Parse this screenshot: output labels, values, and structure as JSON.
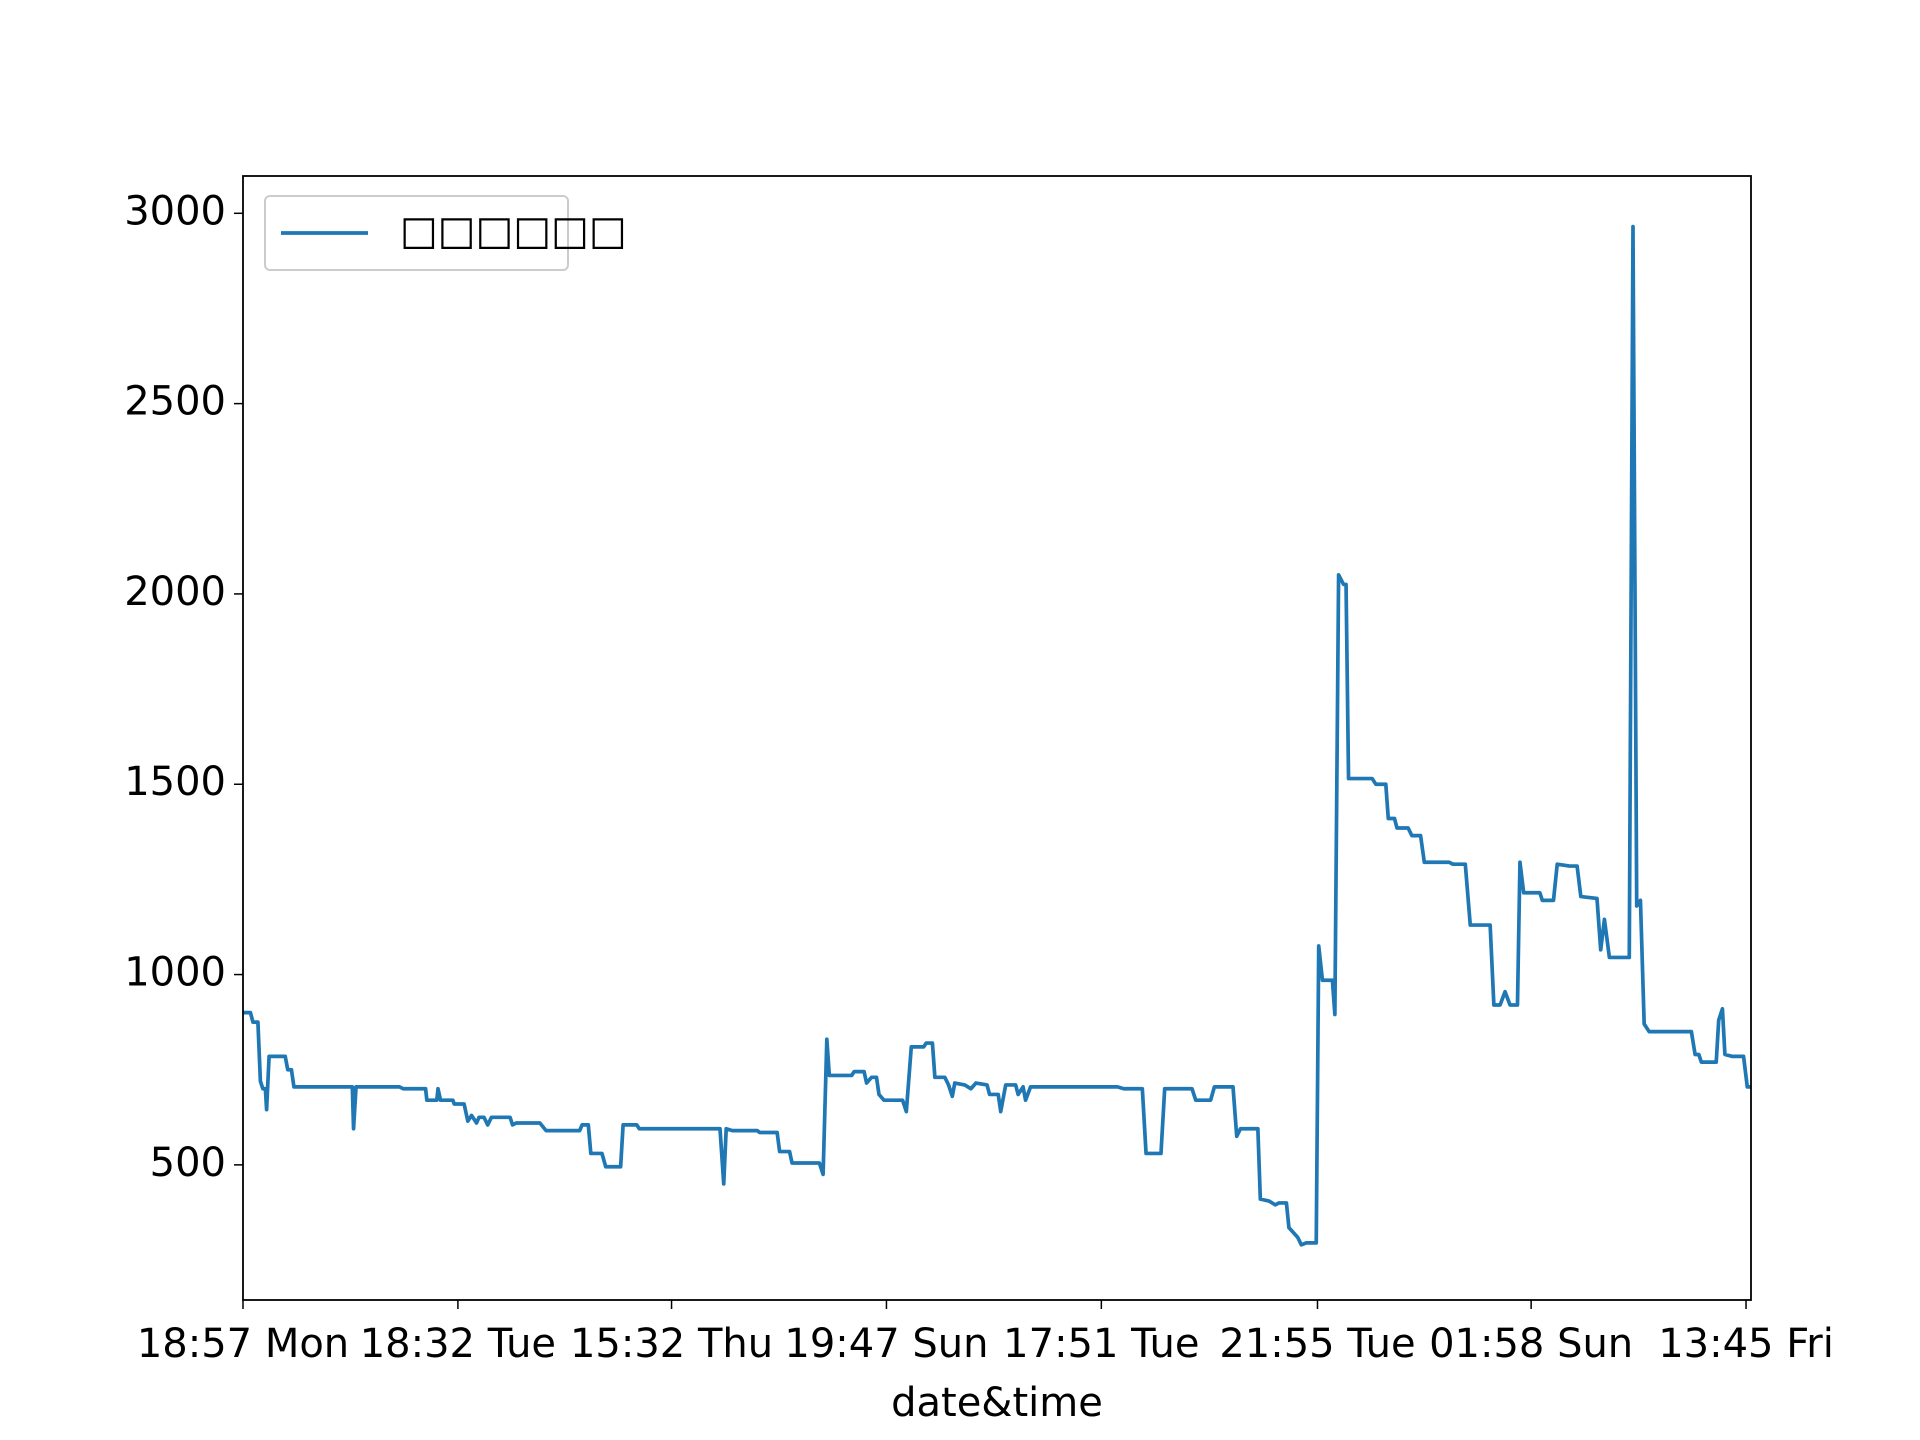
{
  "chart_data": {
    "type": "line",
    "xlabel": "date&time",
    "x": [
      0,
      6,
      8,
      12,
      14,
      16,
      18,
      19,
      21,
      34,
      36,
      39,
      41,
      88,
      89,
      91,
      126,
      129,
      147,
      148,
      156,
      157,
      159,
      169,
      170,
      178,
      181,
      184,
      188,
      190,
      194,
      197,
      200,
      215,
      217,
      220,
      239,
      244,
      271,
      273,
      278,
      280,
      289,
      292,
      304,
      306,
      317,
      319,
      384,
      387,
      389,
      394,
      414,
      416,
      430,
      432,
      440,
      442,
      464,
      467,
      470,
      472,
      490,
      492,
      500,
      502,
      506,
      510,
      512,
      516,
      531,
      534,
      538,
      548,
      550,
      555,
      557,
      565,
      568,
      571,
      573,
      581,
      586,
      590,
      599,
      601,
      608,
      610,
      614,
      622,
      624,
      628,
      630,
      634,
      704,
      709,
      724,
      727,
      739,
      742,
      764,
      767,
      779,
      782,
      797,
      800,
      803,
      817,
      819,
      826,
      831,
      834,
      840,
      842,
      849,
      852,
      856,
      864,
      866,
      869,
      877,
      879,
      882,
      886,
      888,
      890,
      909,
      912,
      920,
      922,
      927,
      929,
      938,
      941,
      948,
      951,
      971,
      974,
      984,
      988,
      1004,
      1007,
      1012,
      1016,
      1020,
      1026,
      1028,
      1031,
      1044,
      1046,
      1055,
      1058,
      1068,
      1074,
      1077,
      1090,
      1093,
      1096,
      1100,
      1116,
      1119,
      1122,
      1125,
      1128,
      1132,
      1166,
      1169,
      1172,
      1174,
      1186,
      1188,
      1191,
      1193,
      1199,
      1208,
      1211,
      1214
    ],
    "series": [
      {
        "name": "□□□□□□",
        "color": "#1f77b4",
        "values": [
          900,
          900,
          875,
          875,
          720,
          700,
          700,
          645,
          785,
          785,
          750,
          750,
          705,
          705,
          595,
          705,
          705,
          700,
          700,
          670,
          670,
          700,
          670,
          670,
          660,
          660,
          615,
          630,
          610,
          625,
          625,
          605,
          625,
          625,
          605,
          610,
          610,
          590,
          590,
          605,
          605,
          530,
          530,
          495,
          495,
          605,
          605,
          595,
          595,
          450,
          595,
          590,
          590,
          585,
          585,
          535,
          535,
          505,
          505,
          475,
          830,
          735,
          735,
          745,
          745,
          715,
          730,
          730,
          685,
          670,
          670,
          640,
          810,
          810,
          820,
          820,
          730,
          730,
          710,
          680,
          715,
          710,
          700,
          715,
          710,
          685,
          685,
          640,
          710,
          710,
          685,
          705,
          670,
          705,
          705,
          700,
          700,
          530,
          530,
          700,
          700,
          670,
          670,
          705,
          705,
          575,
          595,
          595,
          410,
          405,
          395,
          400,
          400,
          335,
          310,
          290,
          295,
          295,
          1075,
          985,
          985,
          895,
          2050,
          2025,
          2025,
          1515,
          1515,
          1500,
          1500,
          1410,
          1410,
          1385,
          1385,
          1365,
          1365,
          1295,
          1295,
          1290,
          1290,
          1130,
          1130,
          920,
          920,
          955,
          920,
          920,
          1295,
          1215,
          1215,
          1195,
          1195,
          1290,
          1285,
          1285,
          1205,
          1200,
          1065,
          1145,
          1045,
          1045,
          2965,
          1180,
          1195,
          870,
          850,
          850,
          790,
          790,
          770,
          770,
          880,
          910,
          790,
          785,
          785,
          705,
          705
        ]
      }
    ],
    "xlim": [
      0,
      1214
    ],
    "xticks": [
      {
        "value": 0,
        "label": "18:57 Mon"
      },
      {
        "value": 173,
        "label": "18:32 Tue"
      },
      {
        "value": 345,
        "label": "15:32 Thu"
      },
      {
        "value": 518,
        "label": "19:47 Sun"
      },
      {
        "value": 691,
        "label": "17:51 Tue"
      },
      {
        "value": 865,
        "label": "21:55 Tue"
      },
      {
        "value": 1037,
        "label": "01:58 Sun"
      },
      {
        "value": 1210,
        "label": "13:45 Fri"
      }
    ],
    "ylim": [
      145,
      3098
    ],
    "yticks": [
      500,
      1000,
      1500,
      2000,
      2500,
      3000
    ],
    "legend": "upper left",
    "grid": false
  }
}
